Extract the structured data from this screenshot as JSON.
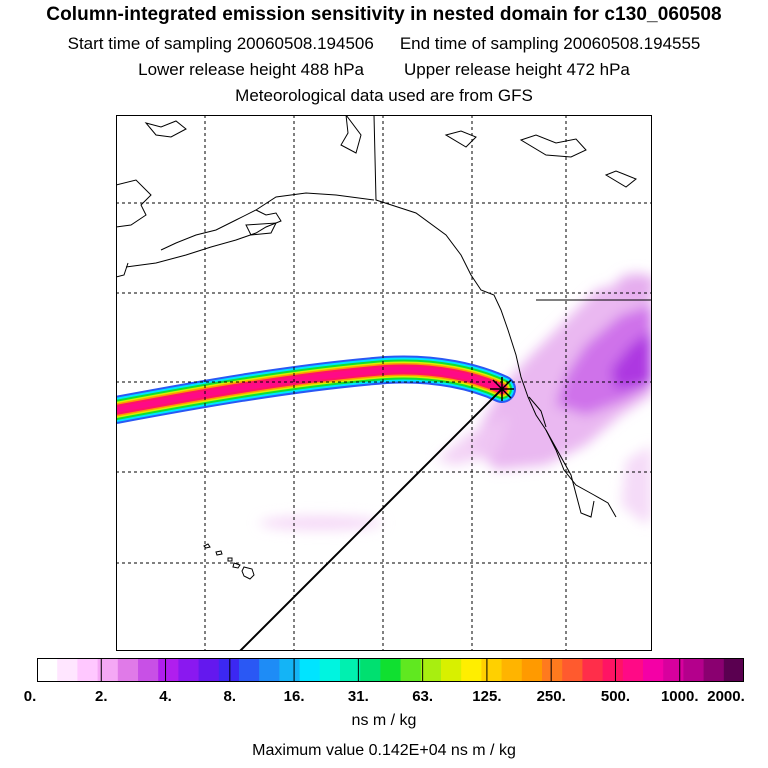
{
  "header": {
    "title": "Column-integrated emission sensitivity in nested domain for c130_060508",
    "start_label": "Start time of sampling 20060508.194506",
    "end_label": "End time of sampling 20060508.194555",
    "lower_label": "Lower release height  488 hPa",
    "upper_label": "Upper release height  472 hPa",
    "met_label": "Meteorological data used are from GFS"
  },
  "map": {
    "release_marker": "release-point-cross",
    "background_color": "#ffffff",
    "coast_color": "#000000",
    "grid_style": "dashed"
  },
  "colorbar": {
    "ticks": [
      "0.",
      "2.",
      "4.",
      "8.",
      "16.",
      "31.",
      "63.",
      "125.",
      "250.",
      "500.",
      "1000.",
      "2000."
    ],
    "colors": [
      "#ffffff",
      "#ffe6ff",
      "#ffc8ff",
      "#f5a8f5",
      "#e07ae8",
      "#c850e6",
      "#b01eee",
      "#8a18f0",
      "#6418ee",
      "#3c28f2",
      "#2a58f4",
      "#1e8cf6",
      "#14b4f6",
      "#00e4ff",
      "#00f4e0",
      "#00f0b0",
      "#00e070",
      "#10e030",
      "#60e820",
      "#a8ee10",
      "#d8f000",
      "#ffee00",
      "#ffd000",
      "#ffb400",
      "#ff9a00",
      "#ff7a1e",
      "#ff5a2e",
      "#ff2e4a",
      "#ff1464",
      "#ff0a86",
      "#f400a6",
      "#d8009e",
      "#b4008c",
      "#8a0070",
      "#5a0050"
    ],
    "units": "ns m / kg",
    "max_value": "Maximum value  0.142E+04 ns m / kg"
  }
}
